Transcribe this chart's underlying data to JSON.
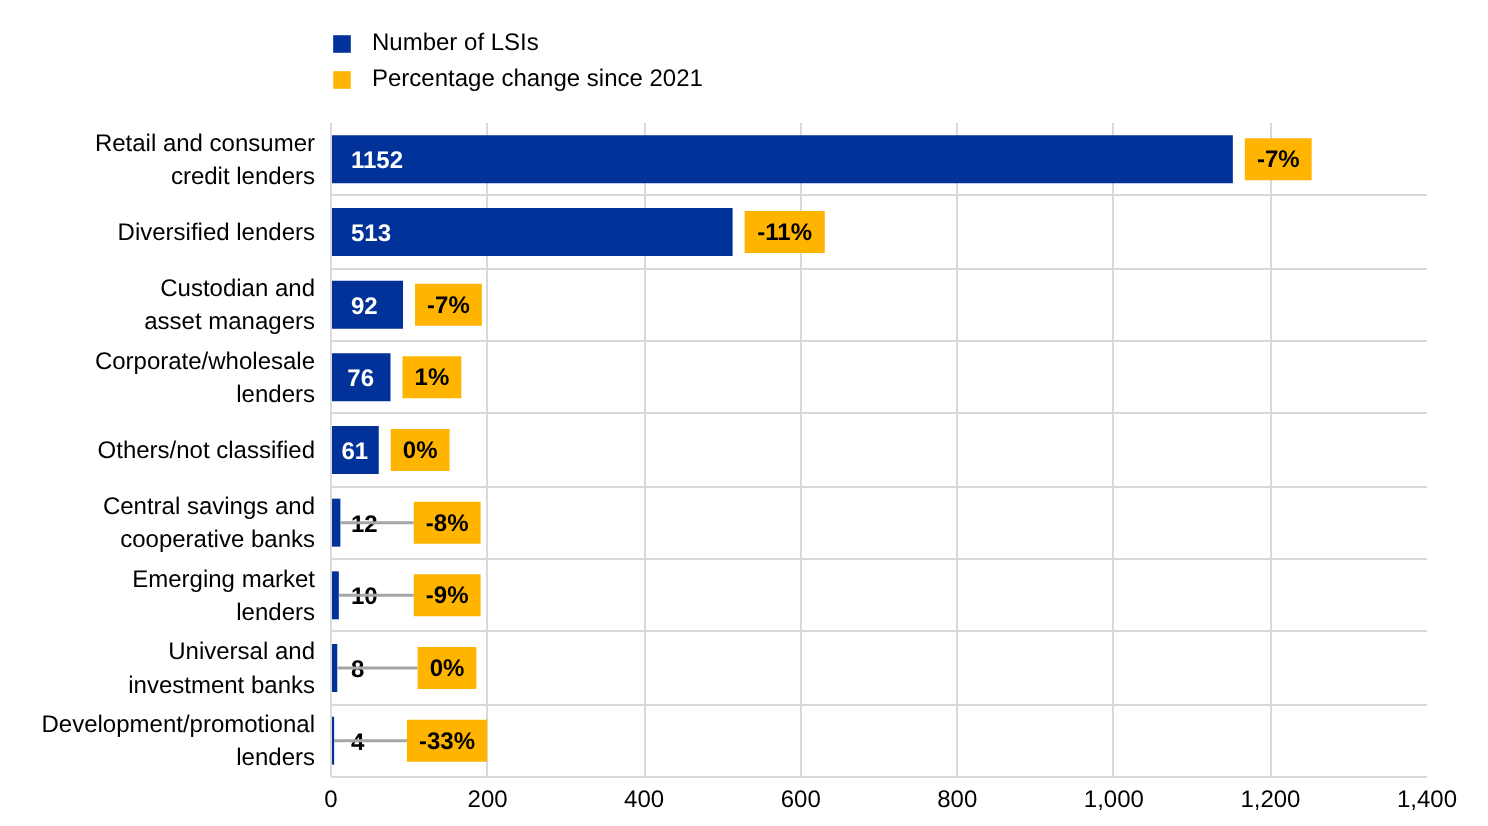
{
  "chart_data": {
    "type": "bar",
    "orientation": "horizontal",
    "categories": [
      "Retail and consumer\ncredit lenders",
      "Diversified lenders",
      "Custodian and\nasset managers",
      "Corporate/wholesale\nlenders",
      "Others/not classified",
      "Central savings and\ncooperative banks",
      "Emerging market\nlenders",
      "Universal and\ninvestment banks",
      "Development/promotional\nlenders"
    ],
    "series": [
      {
        "name": "Number of LSIs",
        "color": "#003299",
        "values": [
          1152,
          513,
          92,
          76,
          61,
          12,
          10,
          8,
          4
        ]
      },
      {
        "name": "Percentage change since 2021",
        "color": "#ffb400",
        "values": [
          null,
          null,
          null,
          null,
          null,
          null,
          null,
          null,
          null
        ]
      }
    ],
    "annotations": [
      {
        "text": "-7%",
        "x": 1152,
        "y": "Retail and consumer\ncredit lenders"
      },
      {
        "text": "-11%",
        "x": 513,
        "y": "Diversified lenders"
      },
      {
        "text": "-7%",
        "x": 92,
        "y": "Custodian and\nasset managers"
      },
      {
        "text": "1%",
        "x": 76,
        "y": "Corporate/wholesale\nlenders"
      },
      {
        "text": "0%",
        "x": 61,
        "y": "Others/not classified"
      },
      {
        "text": "-8%",
        "x": 12,
        "y": "Central savings and\ncooperative banks"
      },
      {
        "text": "-9%",
        "x": 10,
        "y": "Emerging market\nlenders"
      },
      {
        "text": "0%",
        "x": 8,
        "y": "Universal and\ninvestment banks"
      },
      {
        "text": "-33%",
        "x": 4,
        "y": "Development/promotional\nlenders"
      }
    ],
    "xlim": [
      0,
      1400
    ],
    "xticks": [
      0,
      200,
      400,
      600,
      800,
      {
        "value": 1000,
        "label": "1,000"
      },
      {
        "value": 1200,
        "label": "1,200"
      },
      {
        "value": 1400,
        "label": "1,400"
      }
    ],
    "data_labels": true,
    "grid": true,
    "legend": "top"
  }
}
